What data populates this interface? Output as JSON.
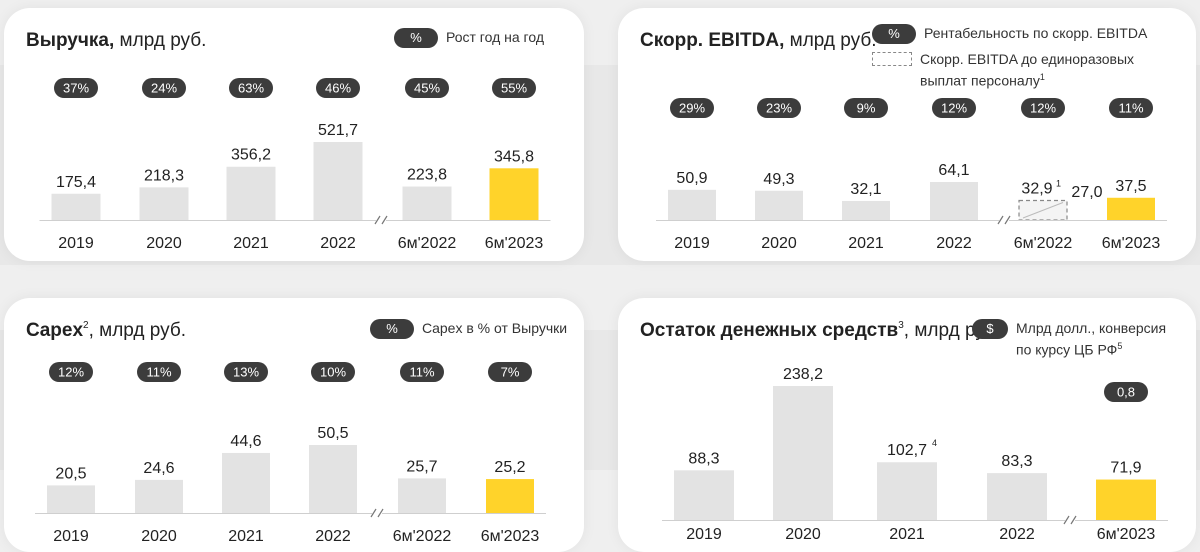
{
  "colors": {
    "pill": "#3c3c3c",
    "bar": "#e3e3e3",
    "highlight": "#ffd32a",
    "text": "#222222"
  },
  "charts": {
    "revenue": {
      "title_bold": "Выручка,",
      "title_rest": " млрд руб.",
      "legend_symbol": "%",
      "legend_label": "Рост год на год"
    },
    "ebitda": {
      "title_bold": "Скорр. EBITDA,",
      "title_rest": " млрд руб.",
      "legend_symbol": "%",
      "legend_label": "Рентабельность по скорр. EBITDA",
      "legend2_line1": "Скорр. EBITDA до единоразовых",
      "legend2_line2": "выплат персоналу",
      "legend2_sup": "1"
    },
    "capex": {
      "title_bold": "Capex",
      "title_sup": "2",
      "title_rest": ", млрд руб.",
      "legend_symbol": "%",
      "legend_label": "Capex в % от Выручки"
    },
    "cash": {
      "title_bold": "Остаток денежных средств",
      "title_sup": "3",
      "title_rest": ", млрд руб.",
      "legend_symbol": "$",
      "legend_line1": "Млрд долл., конверсия",
      "legend_line2": "по курсу ЦБ РФ",
      "legend_sup": "5"
    }
  },
  "chart_data": [
    {
      "id": "revenue",
      "type": "bar",
      "title": "Выручка, млрд руб.",
      "categories": [
        "2019",
        "2020",
        "2021",
        "2022",
        "6м'2022",
        "6м'2023"
      ],
      "values": [
        175.4,
        218.3,
        356.2,
        521.7,
        223.8,
        345.8
      ],
      "labels": [
        "175,4",
        "218,3",
        "356,2",
        "521,7",
        "223,8",
        "345,8"
      ],
      "pills": [
        "37%",
        "24%",
        "63%",
        "46%",
        "45%",
        "55%"
      ],
      "highlight_index": 5,
      "legend": "Рост год на год"
    },
    {
      "id": "ebitda",
      "type": "bar",
      "title": "Скорр. EBITDA, млрд руб.",
      "categories": [
        "2019",
        "2020",
        "2021",
        "2022",
        "6м'2022",
        "6м'2023"
      ],
      "values": [
        50.9,
        49.3,
        32.1,
        64.1,
        27.0,
        37.5
      ],
      "labels": [
        "50,9",
        "49,3",
        "32,1",
        "64,1",
        "27,0",
        "37,5"
      ],
      "pills": [
        "29%",
        "23%",
        "9%",
        "12%",
        "12%",
        "11%"
      ],
      "highlight_index": 5,
      "dashed_index": 4,
      "dashed_value": 32.9,
      "dashed_label": "32,9",
      "dashed_sup": "1",
      "legend": "Рентабельность по скорр. EBITDA"
    },
    {
      "id": "capex",
      "type": "bar",
      "title": "Capex, млрд руб.",
      "categories": [
        "2019",
        "2020",
        "2021",
        "2022",
        "6м'2022",
        "6м'2023"
      ],
      "values": [
        20.5,
        24.6,
        44.6,
        50.5,
        25.7,
        25.2
      ],
      "labels": [
        "20,5",
        "24,6",
        "44,6",
        "50,5",
        "25,7",
        "25,2"
      ],
      "pills": [
        "12%",
        "11%",
        "13%",
        "10%",
        "11%",
        "7%"
      ],
      "highlight_index": 5,
      "legend": "Capex в % от Выручки"
    },
    {
      "id": "cash",
      "type": "bar",
      "title": "Остаток денежных средств, млрд руб.",
      "categories": [
        "2019",
        "2020",
        "2021",
        "2022",
        "6м'2023"
      ],
      "values": [
        88.3,
        238.2,
        102.7,
        83.3,
        71.9
      ],
      "labels": [
        "88,3",
        "238,2",
        "102,7",
        "83,3",
        "71,9"
      ],
      "label_sups": [
        "",
        "",
        "4",
        "",
        ""
      ],
      "pills": [
        "",
        "",
        "",
        "",
        "0,8"
      ],
      "highlight_index": 4,
      "legend": "Млрд долл., конверсия по курсу ЦБ РФ"
    }
  ]
}
